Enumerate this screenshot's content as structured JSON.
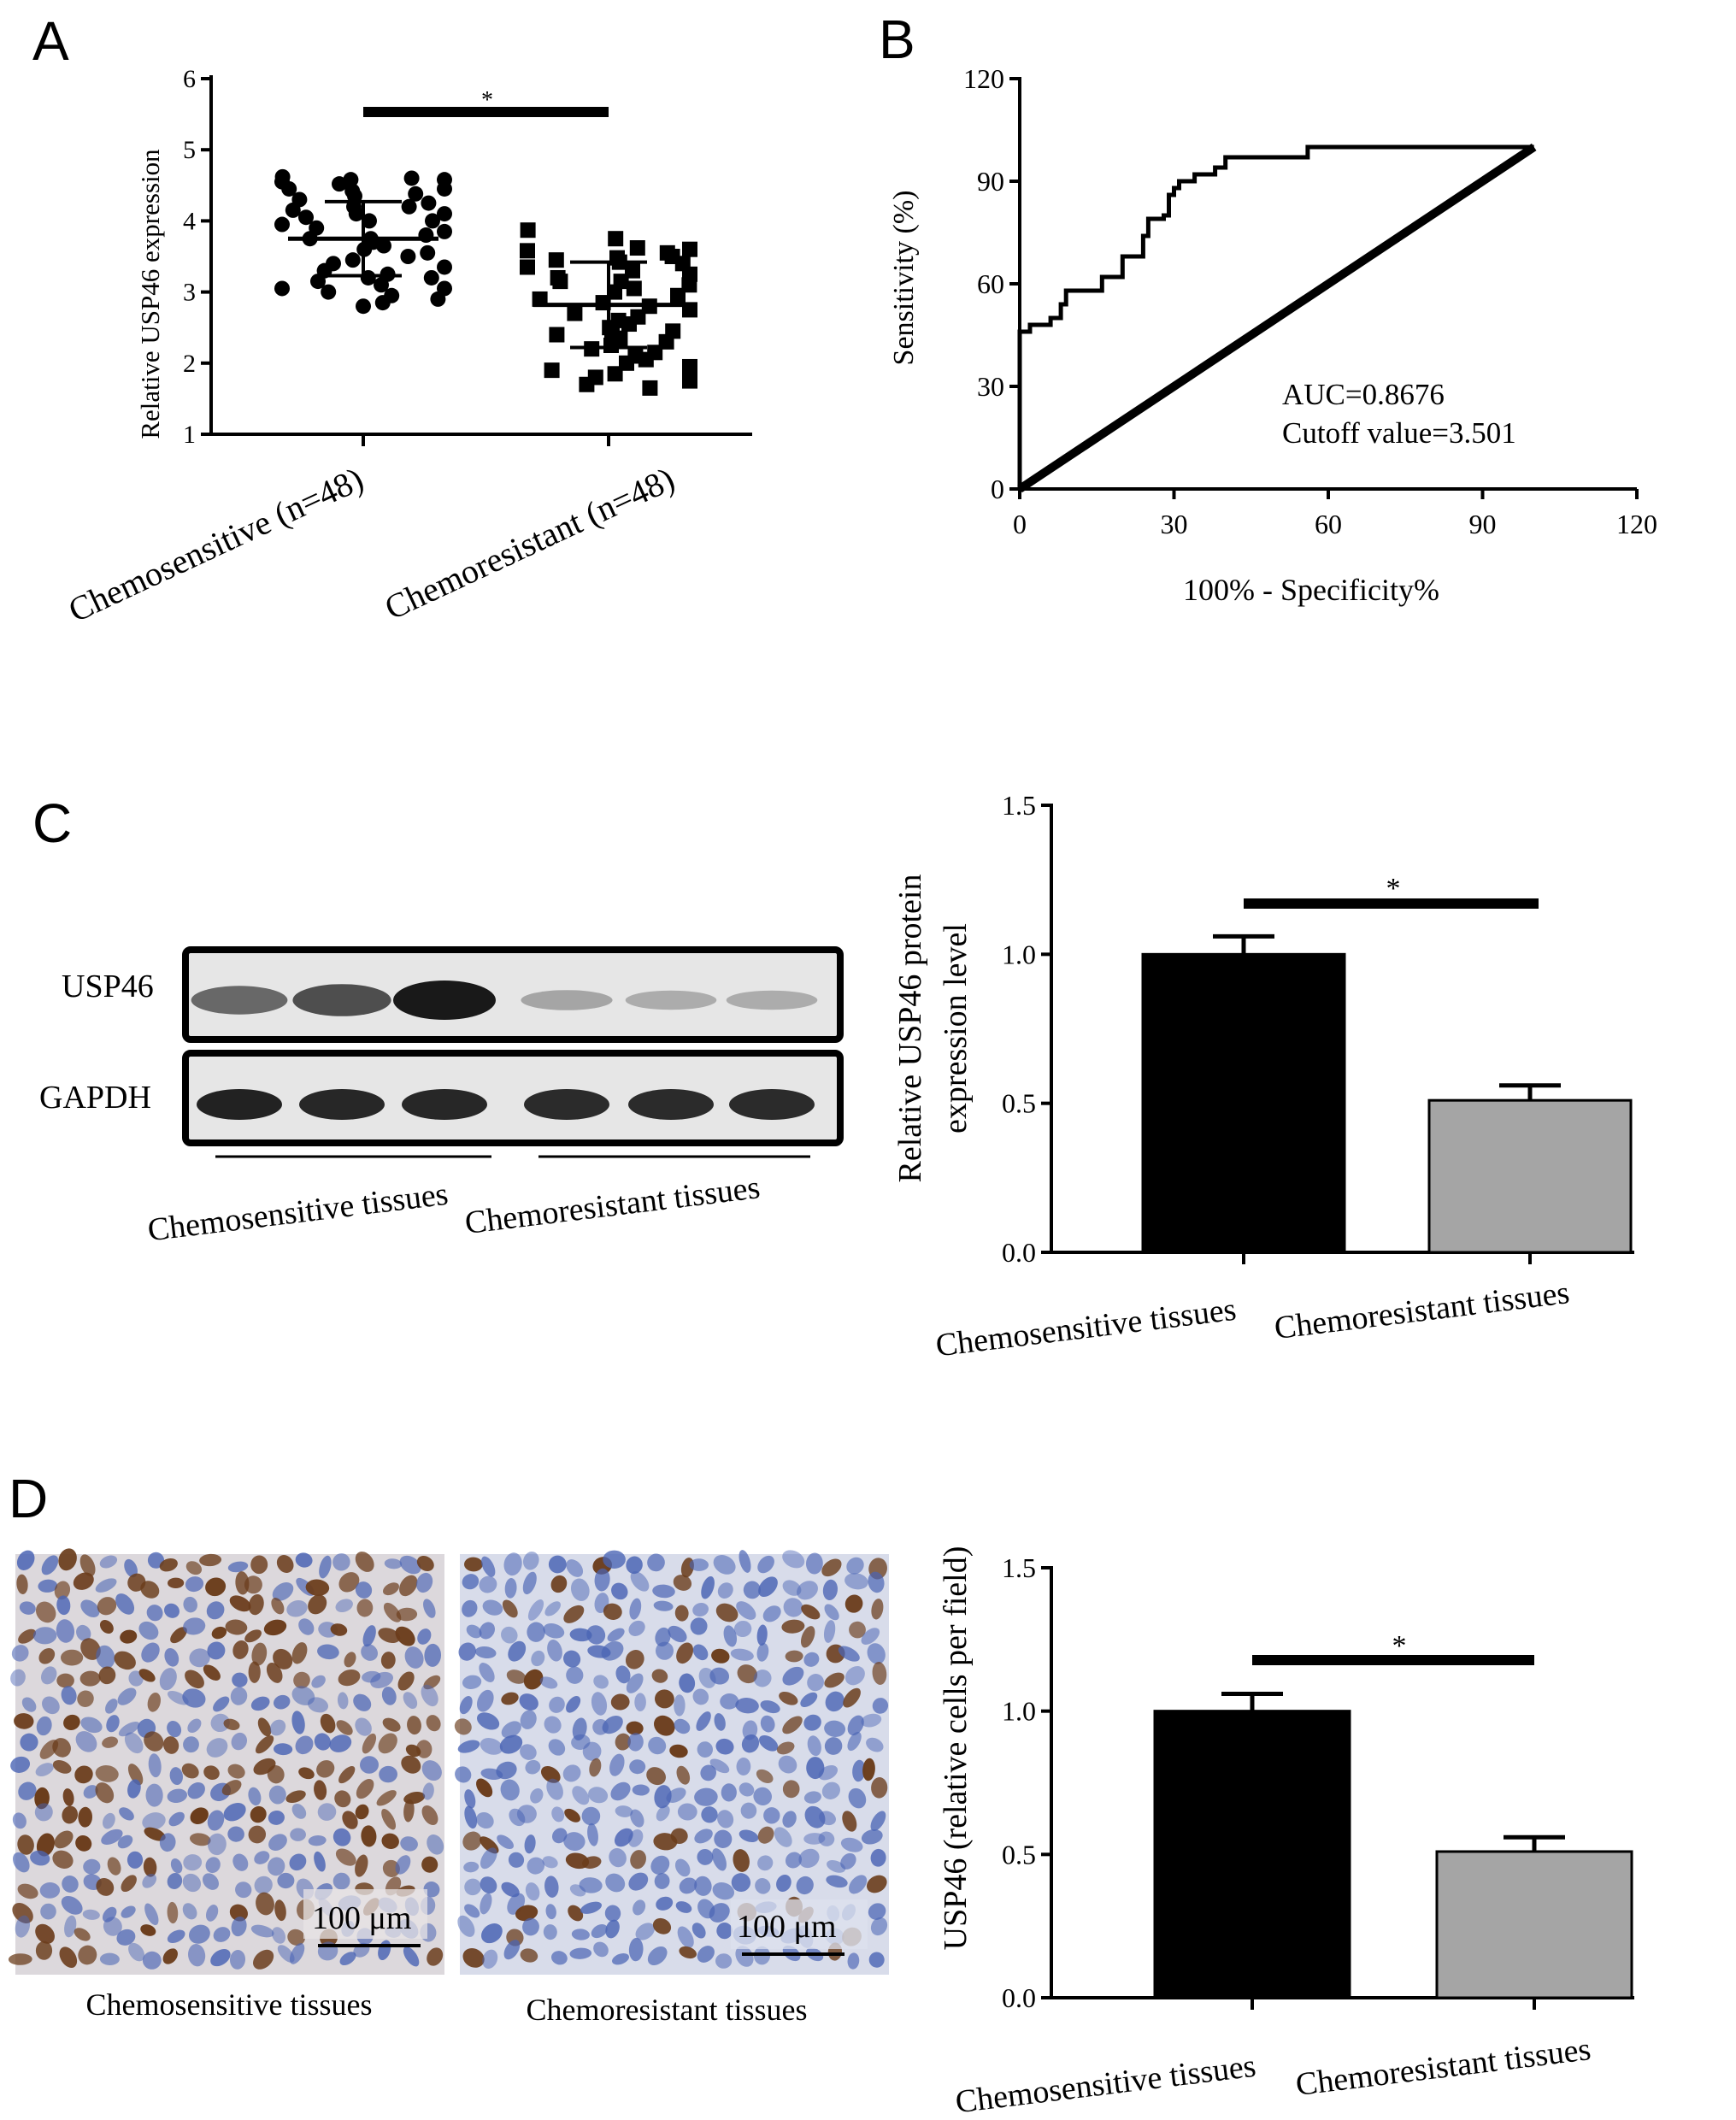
{
  "panel_letters": [
    "A",
    "B",
    "C",
    "D"
  ],
  "western_blot": {
    "row_labels": [
      "USP46",
      "GAPDH"
    ],
    "group_labels": [
      "Chemosensitive tissues",
      "Chemoresistant tissues"
    ],
    "usp46_band_intensity": [
      0.55,
      0.7,
      1.0,
      0.2,
      0.16,
      0.16
    ],
    "gapdh_band_intensity": [
      0.95,
      0.92,
      0.92,
      0.9,
      0.9,
      0.9
    ]
  },
  "ihc": {
    "image_labels": [
      "Chemosensitive tissues",
      "Chemoresistant tissues"
    ],
    "scale_bar_label": "100 μm",
    "brown_cell_fraction": [
      0.45,
      0.2
    ]
  },
  "colors": {
    "black_bar": "#000000",
    "grey_bar": "#a5a5a5",
    "ihc_brown": "#6b3d1c",
    "ihc_blue": "#4a64b4"
  },
  "chart_data": [
    {
      "panel": "A",
      "type": "scatter",
      "ylabel": "Relative USP46 expression",
      "yticks": [
        "1",
        "2",
        "3",
        "4",
        "5",
        "6"
      ],
      "ylim": [
        1,
        6
      ],
      "categories": [
        "Chemosensitive (n=48)",
        "Chemoresistant (n=48)"
      ],
      "series": [
        {
          "marker": "circle",
          "mean": 3.75,
          "sd": 0.52,
          "values": [
            4.62,
            4.6,
            4.58,
            4.58,
            4.55,
            4.52,
            4.45,
            4.45,
            4.42,
            4.38,
            4.35,
            4.3,
            4.25,
            4.2,
            4.2,
            4.15,
            4.1,
            4.1,
            4.05,
            4.0,
            4.0,
            3.95,
            3.9,
            3.85,
            3.8,
            3.75,
            3.75,
            3.7,
            3.65,
            3.6,
            3.55,
            3.5,
            3.45,
            3.4,
            3.35,
            3.3,
            3.25,
            3.2,
            3.2,
            3.15,
            3.1,
            3.05,
            3.05,
            3.0,
            2.95,
            2.9,
            2.85,
            2.8
          ]
        },
        {
          "marker": "square",
          "mean": 2.82,
          "sd": 0.6,
          "values": [
            3.87,
            3.75,
            3.62,
            3.6,
            3.58,
            3.55,
            3.5,
            3.48,
            3.45,
            3.42,
            3.4,
            3.35,
            3.3,
            3.25,
            3.2,
            3.15,
            3.15,
            3.1,
            3.05,
            3.0,
            2.95,
            2.9,
            2.85,
            2.8,
            2.75,
            2.7,
            2.65,
            2.6,
            2.55,
            2.5,
            2.45,
            2.45,
            2.4,
            2.35,
            2.3,
            2.25,
            2.2,
            2.15,
            2.1,
            2.05,
            2.0,
            1.95,
            1.9,
            1.85,
            1.8,
            1.75,
            1.7,
            1.65
          ]
        }
      ],
      "significance": "*"
    },
    {
      "panel": "B",
      "type": "line",
      "xlabel": "100% - Specificity%",
      "ylabel": "Sensitivity (%)",
      "xlim": [
        0,
        120
      ],
      "ylim": [
        0,
        120
      ],
      "xticks": [
        "0",
        "30",
        "60",
        "90",
        "120"
      ],
      "yticks": [
        "0",
        "30",
        "60",
        "90",
        "120"
      ],
      "series": [
        {
          "kind": "roc",
          "points": [
            [
              0,
              0
            ],
            [
              0,
              46
            ],
            [
              2,
              46
            ],
            [
              2,
              48
            ],
            [
              6,
              48
            ],
            [
              6,
              50
            ],
            [
              8,
              50
            ],
            [
              8,
              54
            ],
            [
              9,
              54
            ],
            [
              9,
              58
            ],
            [
              16,
              58
            ],
            [
              16,
              62
            ],
            [
              20,
              62
            ],
            [
              20,
              68
            ],
            [
              24,
              68
            ],
            [
              24,
              74
            ],
            [
              25,
              74
            ],
            [
              25,
              79
            ],
            [
              28,
              79
            ],
            [
              28,
              80
            ],
            [
              29,
              80
            ],
            [
              29,
              86
            ],
            [
              30,
              86
            ],
            [
              30,
              88
            ],
            [
              31,
              88
            ],
            [
              31,
              90
            ],
            [
              34,
              90
            ],
            [
              34,
              92
            ],
            [
              38,
              92
            ],
            [
              38,
              94
            ],
            [
              40,
              94
            ],
            [
              40,
              97
            ],
            [
              56,
              97
            ],
            [
              56,
              100
            ],
            [
              100,
              100
            ]
          ]
        },
        {
          "kind": "reference",
          "points": [
            [
              0,
              0
            ],
            [
              100,
              100
            ]
          ]
        }
      ],
      "annotations": [
        "AUC=0.8676",
        "Cutoff value=3.501"
      ]
    },
    {
      "panel": "C",
      "type": "bar",
      "ylabel": "Relative USP46 protein expression level",
      "ylabel_lines": [
        "Relative USP46 protein",
        "expression level"
      ],
      "yticks": [
        "0.0",
        "0.5",
        "1.0",
        "1.5"
      ],
      "ylim": [
        0,
        1.5
      ],
      "categories": [
        "Chemosensitive tissues",
        "Chemoresistant tissues"
      ],
      "values": [
        1.0,
        0.51
      ],
      "errors": [
        0.06,
        0.05
      ],
      "significance": "*"
    },
    {
      "panel": "D",
      "type": "bar",
      "ylabel": "USP46 (relative cells per field)",
      "yticks": [
        "0.0",
        "0.5",
        "1.0",
        "1.5"
      ],
      "ylim": [
        0,
        1.5
      ],
      "categories": [
        "Chemosensitive tissues",
        "Chemoresistant tissues"
      ],
      "values": [
        1.0,
        0.51
      ],
      "errors": [
        0.06,
        0.05
      ],
      "significance": "*"
    }
  ]
}
